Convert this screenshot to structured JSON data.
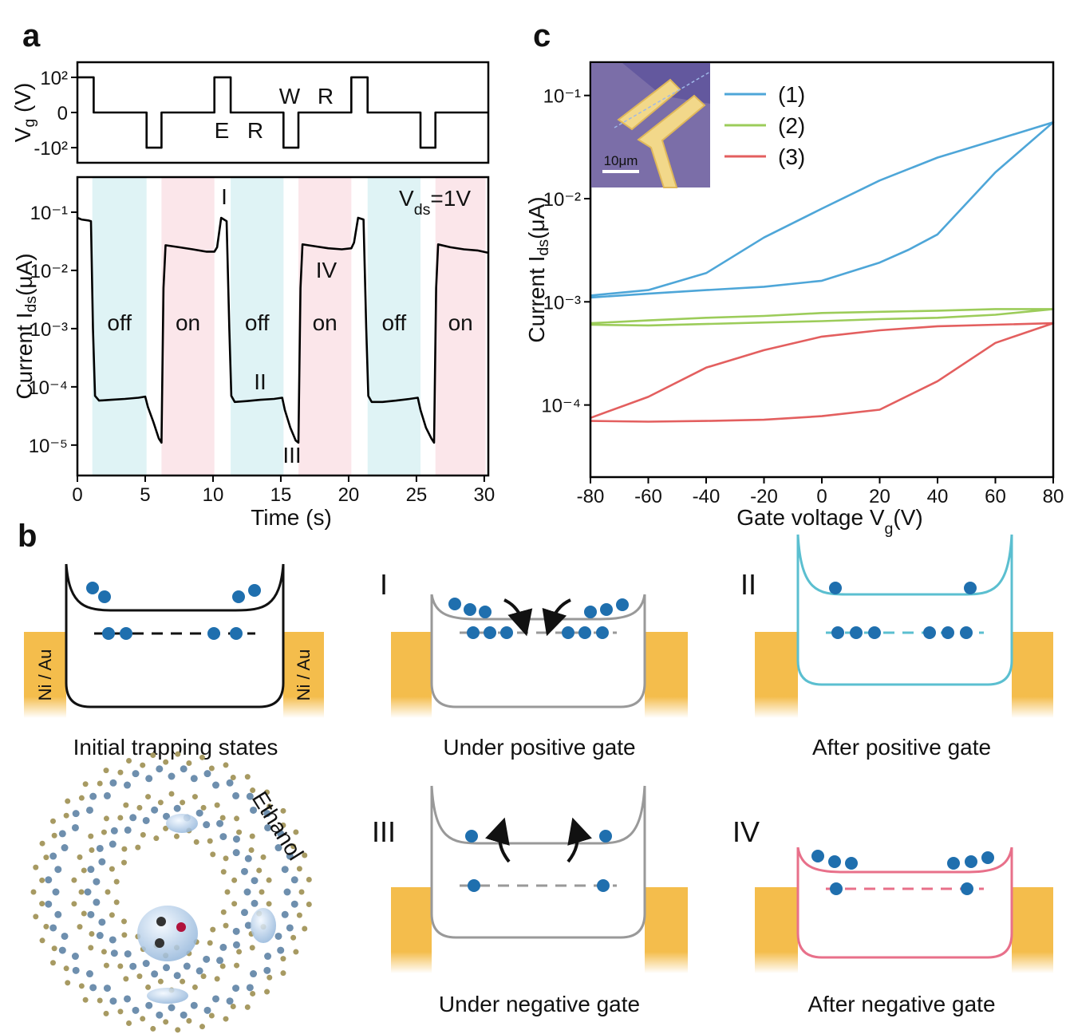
{
  "panel_labels": [
    "a",
    "b",
    "c"
  ],
  "chart_data": [
    {
      "type": "line",
      "ylabel_parts": [
        "V",
        "g",
        " (V)"
      ],
      "color": "#000000",
      "x": [
        0,
        1.2,
        1.2,
        5.1,
        5.1,
        6.2,
        6.2,
        10.1,
        10.1,
        11.3,
        11.3,
        15.2,
        15.2,
        16.3,
        16.3,
        20.2,
        20.2,
        21.4,
        21.4,
        25.3,
        25.3,
        26.4,
        26.4,
        30.3
      ],
      "values": [
        100,
        100,
        0,
        0,
        -100,
        -100,
        0,
        0,
        100,
        100,
        0,
        0,
        -100,
        -100,
        0,
        0,
        100,
        100,
        0,
        0,
        -100,
        -100,
        0,
        0
      ],
      "xlim": [
        0,
        30.3
      ],
      "ylim": [
        -143,
        143
      ],
      "yticks": [
        {
          "value": 100,
          "label": "10²"
        },
        0,
        {
          "value": -100,
          "label": "-10²"
        }
      ],
      "annotations": [
        "E",
        "R",
        "W",
        "R"
      ]
    },
    {
      "type": "line",
      "log_y": true,
      "xlabel": "Time (s)",
      "ylabel_parts": [
        "Current I",
        "ds",
        "(μA)"
      ],
      "color": "#000000",
      "x": [
        0,
        0.3,
        0.8,
        1.0,
        1.15,
        1.3,
        1.6,
        2.5,
        3.5,
        4.5,
        5.0,
        5.2,
        5.6,
        6.0,
        6.2,
        6.35,
        6.5,
        7.5,
        8.5,
        9.5,
        10.1,
        10.3,
        10.6,
        11.0,
        11.2,
        11.35,
        11.6,
        12.5,
        13.5,
        14.5,
        15.1,
        15.3,
        15.7,
        16.1,
        16.3,
        16.45,
        16.6,
        17.5,
        18.5,
        19.5,
        20.2,
        20.4,
        20.7,
        21.1,
        21.3,
        21.45,
        21.7,
        22.5,
        23.5,
        24.5,
        25.1,
        25.3,
        25.7,
        26.1,
        26.3,
        26.45,
        26.6,
        27.5,
        28.5,
        29.5,
        30.3
      ],
      "values": [
        0.08,
        0.075,
        0.072,
        0.07,
        0.001,
        7e-05,
        5.8e-05,
        6e-05,
        6.2e-05,
        6.5e-05,
        6.8e-05,
        4.5e-05,
        2.5e-05,
        1.3e-05,
        1.1e-05,
        0.005,
        0.027,
        0.025,
        0.023,
        0.021,
        0.021,
        0.025,
        0.08,
        0.07,
        0.001,
        7e-05,
        5.5e-05,
        5.7e-05,
        6e-05,
        6.2e-05,
        6.5e-05,
        4e-05,
        2e-05,
        1.2e-05,
        1.1e-05,
        0.005,
        0.028,
        0.026,
        0.024,
        0.023,
        0.024,
        0.03,
        0.08,
        0.075,
        0.001,
        7e-05,
        5.5e-05,
        5.5e-05,
        5.8e-05,
        6.2e-05,
        6.5e-05,
        4e-05,
        2e-05,
        1.3e-05,
        1.1e-05,
        0.005,
        0.028,
        0.025,
        0.023,
        0.022,
        0.02
      ],
      "xlim": [
        0,
        30.3
      ],
      "ylim": [
        3e-06,
        0.4
      ],
      "xticks": [
        0,
        5,
        10,
        15,
        20,
        25,
        30
      ],
      "yticks": [
        {
          "value": 1e-05,
          "label": "10⁻⁵"
        },
        {
          "value": 0.0001,
          "label": "10⁻⁴"
        },
        {
          "value": 0.001,
          "label": "10⁻³"
        },
        {
          "value": 0.01,
          "label": "10⁻²"
        },
        {
          "value": 0.1,
          "label": "10⁻¹"
        }
      ],
      "regions": [
        {
          "label": "off",
          "start": 1.1,
          "end": 5.1,
          "color": "#dff3f5",
          "label_color": "#5cc5d0"
        },
        {
          "label": "on",
          "start": 6.2,
          "end": 10.1,
          "color": "#fbe6ea",
          "label_color": "#e8708a"
        },
        {
          "label": "off",
          "start": 11.3,
          "end": 15.2,
          "color": "#dff3f5",
          "label_color": "#5cc5d0"
        },
        {
          "label": "on",
          "start": 16.3,
          "end": 20.2,
          "color": "#fbe6ea",
          "label_color": "#e8708a"
        },
        {
          "label": "off",
          "start": 21.4,
          "end": 25.3,
          "color": "#dff3f5",
          "label_color": "#5cc5d0"
        },
        {
          "label": "on",
          "start": 26.4,
          "end": 30.1,
          "color": "#fbe6ea",
          "label_color": "#e8708a"
        }
      ],
      "annotations": [
        "I",
        "II",
        "III",
        "IV"
      ],
      "note_parts": [
        "V",
        "ds",
        "=1V"
      ]
    },
    {
      "type": "line",
      "log_y": true,
      "xlabel_parts": [
        "Gate voltage V",
        "g",
        "(V)"
      ],
      "ylabel_parts": [
        "Current I",
        "ds",
        "(μA)"
      ],
      "xlim": [
        -80,
        80
      ],
      "ylim": [
        2e-05,
        0.21
      ],
      "xticks": [
        -80,
        -60,
        -40,
        -20,
        0,
        20,
        40,
        60,
        80
      ],
      "yticks": [
        {
          "value": 0.0001,
          "label": "10⁻⁴"
        },
        {
          "value": 0.001,
          "label": "10⁻³"
        },
        {
          "value": 0.01,
          "label": "10⁻²"
        },
        {
          "value": 0.1,
          "label": "10⁻¹"
        }
      ],
      "series": [
        {
          "name": "(1)",
          "color": "#4ea6d8",
          "x": [
            -80,
            -60,
            -40,
            -20,
            0,
            20,
            40,
            60,
            80,
            60,
            40,
            30,
            20,
            0,
            -20,
            -40,
            -60,
            -80
          ],
          "values": [
            0.00115,
            0.0013,
            0.0019,
            0.0042,
            0.008,
            0.015,
            0.025,
            0.037,
            0.055,
            0.018,
            0.0045,
            0.0032,
            0.0024,
            0.0016,
            0.0014,
            0.0013,
            0.0012,
            0.0011
          ]
        },
        {
          "name": "(2)",
          "color": "#9ccc5a",
          "x": [
            -80,
            -60,
            -40,
            -20,
            0,
            20,
            40,
            60,
            80,
            60,
            40,
            20,
            0,
            -20,
            -40,
            -60,
            -80
          ],
          "values": [
            0.00062,
            0.00066,
            0.0007,
            0.00073,
            0.00078,
            0.0008,
            0.00082,
            0.00085,
            0.00085,
            0.00075,
            0.0007,
            0.00068,
            0.00065,
            0.00063,
            0.00061,
            0.00059,
            0.0006
          ]
        },
        {
          "name": "(3)",
          "color": "#e35f5f",
          "x": [
            -80,
            -60,
            -40,
            -20,
            0,
            20,
            40,
            60,
            80,
            60,
            40,
            20,
            0,
            -20,
            -40,
            -60,
            -80
          ],
          "values": [
            7.5e-05,
            0.00012,
            0.00023,
            0.00034,
            0.00046,
            0.00053,
            0.00058,
            0.0006,
            0.00062,
            0.0004,
            0.00017,
            9e-05,
            7.8e-05,
            7.2e-05,
            7e-05,
            6.9e-05,
            7e-05
          ]
        }
      ],
      "inset_scale_bar": "10μm"
    }
  ],
  "diagram": {
    "electrode_label": "Ni / Au",
    "captions": [
      "Initial trapping states",
      "Under positive gate",
      "After positive gate",
      "Under negative gate",
      "After negative gate"
    ],
    "state_labels": [
      "I",
      "II",
      "III",
      "IV"
    ],
    "molecule_label": "Ethanol"
  }
}
